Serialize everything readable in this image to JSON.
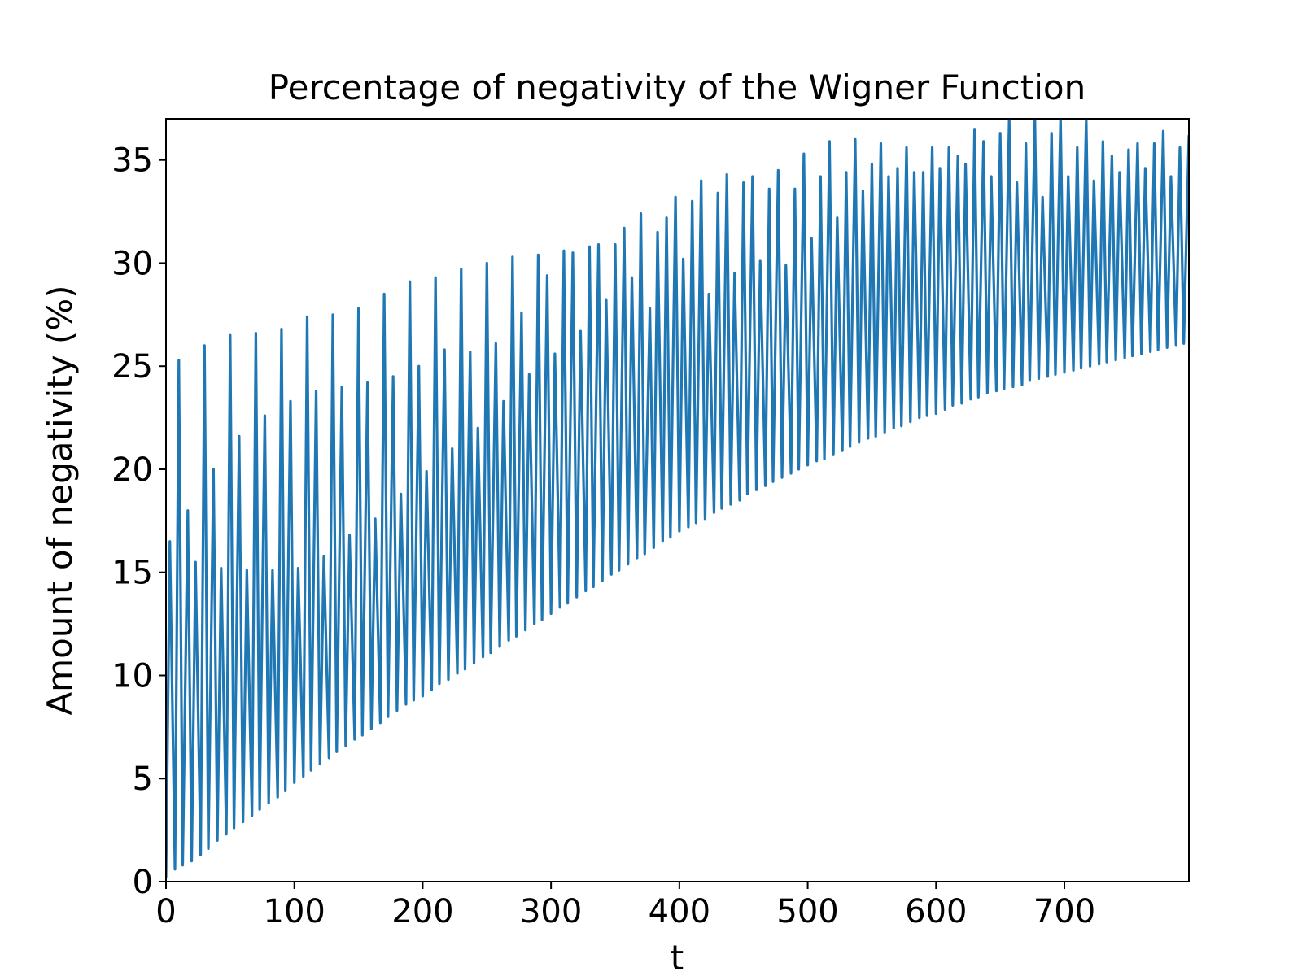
{
  "chart_data": {
    "type": "line",
    "title": "Percentage of negativity of the Wigner Function",
    "xlabel": "t",
    "ylabel": "Amount of negativity (%)",
    "color": "#1f77b4",
    "xlim": [
      0,
      797
    ],
    "ylim": [
      0,
      37
    ],
    "xticks": [
      0,
      100,
      200,
      300,
      400,
      500,
      600,
      700
    ],
    "yticks": [
      0,
      5,
      10,
      15,
      20,
      25,
      30,
      35
    ],
    "grid": false,
    "x": [
      0,
      3,
      7,
      10,
      13,
      17,
      20,
      23,
      27,
      30,
      33,
      37,
      40,
      43,
      47,
      50,
      53,
      57,
      60,
      63,
      67,
      70,
      73,
      77,
      80,
      83,
      87,
      90,
      93,
      97,
      100,
      103,
      107,
      110,
      113,
      117,
      120,
      123,
      127,
      130,
      133,
      137,
      140,
      143,
      147,
      150,
      153,
      157,
      160,
      163,
      167,
      170,
      173,
      177,
      180,
      183,
      187,
      190,
      193,
      197,
      200,
      203,
      207,
      210,
      213,
      217,
      220,
      223,
      227,
      230,
      233,
      237,
      240,
      243,
      247,
      250,
      253,
      257,
      260,
      263,
      267,
      270,
      273,
      277,
      280,
      283,
      287,
      290,
      293,
      297,
      300,
      303,
      307,
      310,
      313,
      317,
      320,
      323,
      327,
      330,
      333,
      337,
      340,
      343,
      347,
      350,
      353,
      357,
      360,
      363,
      367,
      370,
      373,
      377,
      380,
      383,
      387,
      390,
      393,
      397,
      400,
      403,
      407,
      410,
      413,
      417,
      420,
      423,
      427,
      430,
      433,
      437,
      440,
      443,
      447,
      450,
      453,
      457,
      460,
      463,
      467,
      470,
      473,
      477,
      480,
      483,
      487,
      490,
      493,
      497,
      500,
      503,
      507,
      510,
      513,
      517,
      520,
      523,
      527,
      530,
      533,
      537,
      540,
      543,
      547,
      550,
      553,
      557,
      560,
      563,
      567,
      570,
      573,
      577,
      580,
      583,
      587,
      590,
      593,
      597,
      600,
      603,
      607,
      610,
      613,
      617,
      620,
      623,
      627,
      630,
      633,
      637,
      640,
      643,
      647,
      650,
      653,
      657,
      660,
      663,
      667,
      670,
      673,
      677,
      680,
      683,
      687,
      690,
      693,
      697,
      700,
      703,
      707,
      710,
      713,
      717,
      720,
      723,
      727,
      730,
      733,
      737,
      740,
      743,
      747,
      750,
      753,
      757,
      760,
      763,
      767,
      770,
      773,
      777,
      780,
      783,
      787,
      790,
      793,
      797
    ],
    "values": [
      0.2,
      16.5,
      0.6,
      25.3,
      0.8,
      18,
      1.0,
      15.5,
      1.3,
      26,
      1.6,
      20,
      2.0,
      15.2,
      2.3,
      26.5,
      2.6,
      21.6,
      2.9,
      15.1,
      3.2,
      26.6,
      3.5,
      22.6,
      3.8,
      15.1,
      4.1,
      26.8,
      4.4,
      23.3,
      4.8,
      15.2,
      5.1,
      27.4,
      5.4,
      23.8,
      5.7,
      15.8,
      6.0,
      27.5,
      6.3,
      24,
      6.6,
      16.8,
      6.9,
      27.8,
      7.1,
      24.2,
      7.4,
      17.6,
      7.7,
      28.5,
      8.0,
      24.5,
      8.3,
      18.8,
      8.6,
      29.1,
      8.8,
      25,
      9.0,
      19.9,
      9.3,
      29.3,
      9.6,
      25.8,
      9.8,
      21,
      10.1,
      29.7,
      10.3,
      25.7,
      10.6,
      22,
      10.9,
      30,
      11.1,
      26.1,
      11.4,
      23.3,
      11.7,
      30.3,
      11.9,
      27.6,
      12.2,
      24.6,
      12.5,
      30.4,
      12.7,
      29.4,
      13.0,
      25.6,
      13.3,
      30.6,
      13.5,
      30.5,
      13.8,
      26.7,
      14.1,
      30.8,
      14.3,
      30.9,
      14.6,
      28.2,
      14.9,
      30.9,
      15.1,
      31.7,
      15.4,
      29.3,
      15.7,
      32.4,
      15.9,
      27.8,
      16.2,
      31.5,
      16.5,
      32.2,
      16.7,
      33.2,
      17.0,
      30.2,
      17.2,
      33,
      17.4,
      34,
      17.6,
      28.5,
      17.9,
      33.4,
      18.1,
      34.3,
      18.3,
      29.5,
      18.5,
      33.9,
      18.8,
      34.2,
      19.0,
      30.1,
      19.2,
      33.6,
      19.4,
      34.5,
      19.6,
      29.9,
      19.8,
      33.6,
      20.0,
      35.3,
      20.2,
      31.2,
      20.4,
      34.2,
      20.5,
      35.9,
      20.7,
      32.2,
      20.9,
      34.4,
      21.1,
      36.0,
      21.3,
      33.5,
      21.5,
      34.8,
      21.6,
      35.8,
      21.8,
      34.2,
      22.0,
      34.6,
      22.1,
      35.6,
      22.3,
      34.4,
      22.5,
      34.4,
      22.6,
      35.6,
      22.7,
      34.6,
      22.9,
      35.6,
      23.1,
      35.2,
      23.2,
      34.8,
      23.4,
      36.5,
      23.5,
      35.9,
      23.7,
      34.2,
      23.8,
      36.3,
      23.9,
      37,
      24.0,
      33.9,
      24.1,
      35.8,
      24.3,
      37,
      24.4,
      33.2,
      24.5,
      36.3,
      24.6,
      37,
      24.7,
      34.2,
      24.8,
      35.6,
      24.9,
      37,
      25.0,
      34.0,
      25.1,
      35.9,
      25.2,
      35.2,
      25.3,
      34.4,
      25.4,
      35.5,
      25.5,
      35.8,
      25.6,
      34.6,
      25.7,
      35.8,
      25.8,
      36.4,
      25.9,
      34.2,
      26.0,
      35.6,
      26.1,
      36.2
    ]
  }
}
